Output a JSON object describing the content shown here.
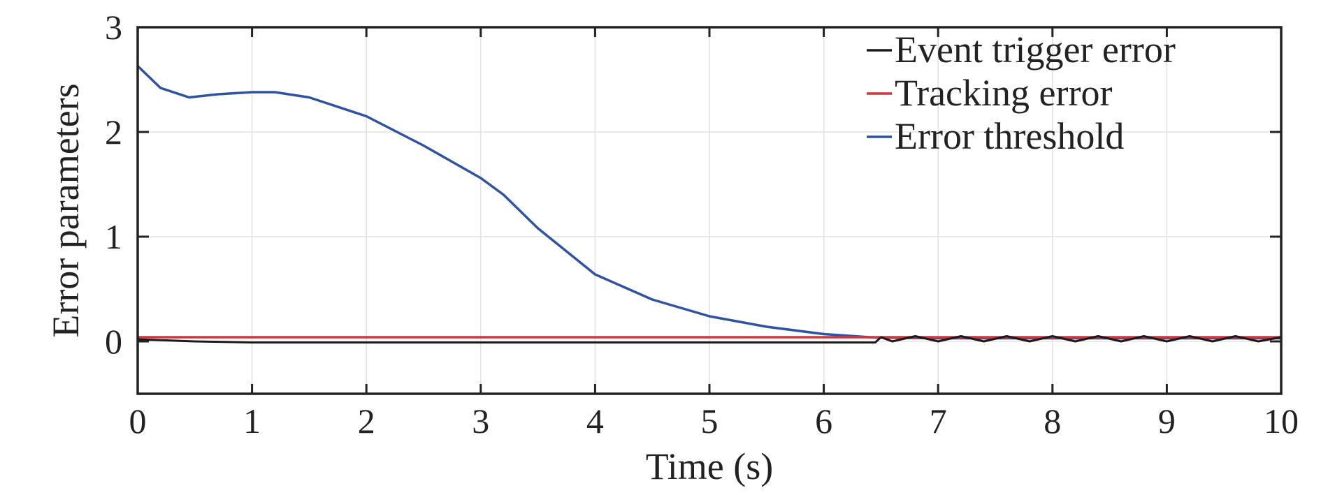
{
  "chart_data": {
    "type": "line",
    "xlabel": "Time (s)",
    "ylabel": "Error parameters",
    "xlim": [
      0,
      10
    ],
    "ylim": [
      -0.5,
      3
    ],
    "xticks": [
      "0",
      "1",
      "2",
      "3",
      "4",
      "5",
      "6",
      "7",
      "8",
      "9",
      "10"
    ],
    "yticks": [
      "0",
      "1",
      "2",
      "3"
    ],
    "grid": true,
    "legend_position": "top-right",
    "series": [
      {
        "name": "Event trigger error",
        "color": "#1a1a1a",
        "x": [
          0,
          0.5,
          1,
          2,
          3,
          4,
          5,
          6,
          6.45,
          6.5,
          6.6,
          6.8,
          7.0,
          7.2,
          7.4,
          7.6,
          7.8,
          8.0,
          8.2,
          8.4,
          8.6,
          8.8,
          9.0,
          9.2,
          9.4,
          9.6,
          9.8,
          10.0
        ],
        "y": [
          0.02,
          0.0,
          -0.01,
          -0.01,
          -0.01,
          -0.01,
          -0.01,
          -0.01,
          -0.01,
          0.04,
          0.0,
          0.05,
          0.0,
          0.05,
          0.0,
          0.05,
          0.0,
          0.05,
          0.0,
          0.05,
          0.0,
          0.05,
          0.0,
          0.05,
          0.0,
          0.05,
          0.0,
          0.04
        ]
      },
      {
        "name": "Tracking error",
        "color": "#d4343c",
        "x": [
          0,
          10
        ],
        "y": [
          0.04,
          0.04
        ]
      },
      {
        "name": "Error threshold",
        "color": "#2f53a2",
        "x": [
          0,
          0.2,
          0.45,
          0.7,
          1.0,
          1.2,
          1.5,
          2.0,
          2.5,
          3.0,
          3.2,
          3.5,
          4.0,
          4.5,
          5.0,
          5.5,
          6.0,
          6.4,
          6.6,
          7.0,
          8.0,
          9.0,
          10.0
        ],
        "y": [
          2.63,
          2.42,
          2.33,
          2.36,
          2.38,
          2.38,
          2.33,
          2.15,
          1.87,
          1.56,
          1.4,
          1.08,
          0.64,
          0.4,
          0.24,
          0.14,
          0.07,
          0.04,
          0.035,
          0.03,
          0.03,
          0.03,
          0.03
        ]
      }
    ]
  }
}
